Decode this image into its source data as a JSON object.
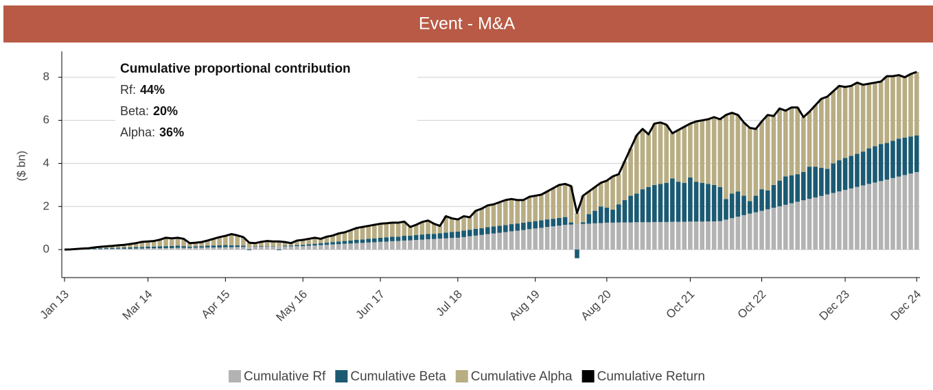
{
  "chart_data": {
    "type": "bar",
    "stacked": true,
    "title": "Event - M&A",
    "y_label": "($ bn)",
    "annotation": {
      "title": "Cumulative proportional contribution",
      "items": [
        {
          "label": "Rf:",
          "value": "44%"
        },
        {
          "label": "Beta:",
          "value": "20%"
        },
        {
          "label": "Alpha:",
          "value": "36%"
        }
      ]
    },
    "categories": [
      "Jan 13",
      null,
      null,
      null,
      null,
      null,
      null,
      null,
      null,
      null,
      null,
      null,
      null,
      null,
      "Mar 14",
      null,
      null,
      null,
      null,
      null,
      null,
      null,
      null,
      null,
      null,
      null,
      null,
      "Apr 15",
      null,
      null,
      null,
      null,
      null,
      null,
      null,
      null,
      null,
      null,
      null,
      null,
      "May 16",
      null,
      null,
      null,
      null,
      null,
      null,
      null,
      null,
      null,
      null,
      null,
      null,
      "Jun 17",
      null,
      null,
      null,
      null,
      null,
      null,
      null,
      null,
      null,
      null,
      null,
      null,
      "Jul 18",
      null,
      null,
      null,
      null,
      null,
      null,
      null,
      null,
      null,
      null,
      null,
      null,
      "Aug 19",
      null,
      null,
      null,
      null,
      null,
      null,
      null,
      null,
      null,
      null,
      null,
      "Aug 20",
      null,
      null,
      null,
      null,
      null,
      null,
      null,
      null,
      null,
      null,
      null,
      null,
      null,
      "Oct 21",
      null,
      null,
      null,
      null,
      null,
      null,
      null,
      null,
      null,
      null,
      null,
      "Oct 22",
      null,
      null,
      null,
      null,
      null,
      null,
      null,
      null,
      null,
      null,
      null,
      null,
      null,
      "Dec 23",
      null,
      null,
      null,
      null,
      null,
      null,
      null,
      null,
      null,
      null,
      null,
      "Dec 24"
    ],
    "series": [
      {
        "name": "Cumulative Rf",
        "color": "#b3b3b3",
        "values": [
          0,
          0,
          0.01,
          0.01,
          0.02,
          0.02,
          0.02,
          0.03,
          0.03,
          0.04,
          0.04,
          0.04,
          0.05,
          0.05,
          0.06,
          0.06,
          0.06,
          0.07,
          0.07,
          0.08,
          0.08,
          0.08,
          0.09,
          0.09,
          0.1,
          0.1,
          0.1,
          0.11,
          0.11,
          0.12,
          0.12,
          0.12,
          0.13,
          0.13,
          0.14,
          0.14,
          0.14,
          0.15,
          0.15,
          0.16,
          0.16,
          0.18,
          0.19,
          0.21,
          0.22,
          0.24,
          0.25,
          0.27,
          0.28,
          0.3,
          0.31,
          0.33,
          0.34,
          0.36,
          0.37,
          0.39,
          0.4,
          0.42,
          0.43,
          0.45,
          0.46,
          0.48,
          0.49,
          0.51,
          0.52,
          0.54,
          0.55,
          0.58,
          0.62,
          0.65,
          0.68,
          0.72,
          0.75,
          0.78,
          0.81,
          0.85,
          0.88,
          0.91,
          0.95,
          0.98,
          1.01,
          1.05,
          1.08,
          1.11,
          1.15,
          1.16,
          1.17,
          1.19,
          1.2,
          1.22,
          1.23,
          1.25,
          1.25,
          1.26,
          1.26,
          1.26,
          1.27,
          1.27,
          1.27,
          1.28,
          1.28,
          1.28,
          1.29,
          1.29,
          1.29,
          1.3,
          1.3,
          1.3,
          1.31,
          1.31,
          1.32,
          1.39,
          1.46,
          1.53,
          1.6,
          1.67,
          1.73,
          1.8,
          1.87,
          1.94,
          2.01,
          2.08,
          2.15,
          2.22,
          2.29,
          2.36,
          2.42,
          2.49,
          2.56,
          2.63,
          2.7,
          2.77,
          2.84,
          2.91,
          2.98,
          3.05,
          3.11,
          3.18,
          3.25,
          3.32,
          3.39,
          3.46,
          3.53,
          3.6
        ]
      },
      {
        "name": "Cumulative Beta",
        "color": "#1b5a72",
        "values": [
          0,
          0,
          0.01,
          0.01,
          0.02,
          0.03,
          0.04,
          0.04,
          0.05,
          0.05,
          0.06,
          0.06,
          0.07,
          0.07,
          0.08,
          0.08,
          0.09,
          0.09,
          0.1,
          0.1,
          0.08,
          0.06,
          0.06,
          0.07,
          0.08,
          0.09,
          0.1,
          0.1,
          0.09,
          0.08,
          0.06,
          -0.03,
          0.02,
          0.03,
          0.02,
          0.02,
          -0.03,
          0.03,
          0.04,
          0.05,
          0.06,
          0.07,
          0.08,
          0.09,
          0.1,
          0.11,
          0.12,
          0.13,
          0.14,
          0.15,
          0.16,
          0.17,
          0.18,
          0.19,
          0.2,
          0.21,
          0.2,
          0.22,
          0.21,
          0.23,
          0.24,
          0.25,
          0.24,
          0.25,
          0.27,
          0.28,
          0.29,
          0.3,
          0.3,
          0.31,
          0.31,
          0.32,
          0.32,
          0.33,
          0.33,
          0.33,
          0.33,
          0.34,
          0.34,
          0.34,
          0.35,
          0.35,
          0.35,
          0.36,
          0.36,
          0.1,
          -0.4,
          0.08,
          0.45,
          0.58,
          0.77,
          0.7,
          0.6,
          0.84,
          1.04,
          1.24,
          1.33,
          1.53,
          1.63,
          1.72,
          1.77,
          1.82,
          2.01,
          1.86,
          1.81,
          2.05,
          1.85,
          1.8,
          1.74,
          1.69,
          1.58,
          0.96,
          1.14,
          1.17,
          0.9,
          0.58,
          0.77,
          1.0,
          0.88,
          1.06,
          1.19,
          1.32,
          1.3,
          1.28,
          1.31,
          1.49,
          1.43,
          1.31,
          1.19,
          1.37,
          1.45,
          1.48,
          1.51,
          1.54,
          1.57,
          1.65,
          1.69,
          1.72,
          1.7,
          1.73,
          1.76,
          1.74,
          1.72,
          1.7
        ]
      },
      {
        "name": "Cumulative Alpha",
        "color": "#b8ad83",
        "values": [
          0,
          0.01,
          0.01,
          0.03,
          0.02,
          0.05,
          0.07,
          0.08,
          0.09,
          0.11,
          0.12,
          0.16,
          0.18,
          0.24,
          0.24,
          0.26,
          0.31,
          0.39,
          0.35,
          0.37,
          0.34,
          0.16,
          0.17,
          0.19,
          0.24,
          0.31,
          0.38,
          0.43,
          0.52,
          0.46,
          0.4,
          0.2,
          0.15,
          0.2,
          0.24,
          0.22,
          0.24,
          0.17,
          0.11,
          0.21,
          0.23,
          0.25,
          0.28,
          0.2,
          0.28,
          0.3,
          0.38,
          0.4,
          0.48,
          0.55,
          0.58,
          0.6,
          0.63,
          0.65,
          0.65,
          0.65,
          0.65,
          0.66,
          0.41,
          0.47,
          0.58,
          0.62,
          0.47,
          0.34,
          0.76,
          0.63,
          0.56,
          0.67,
          0.58,
          0.84,
          0.91,
          1.01,
          1.03,
          1.09,
          1.16,
          1.17,
          1.09,
          1.05,
          1.16,
          1.18,
          1.19,
          1.3,
          1.42,
          1.53,
          1.54,
          1.69,
          0.53,
          1.23,
          1.05,
          1.1,
          1.1,
          1.25,
          1.55,
          1.4,
          1.8,
          2.2,
          2.7,
          2.8,
          2.45,
          2.85,
          2.85,
          2.7,
          2.1,
          2.4,
          2.6,
          2.5,
          2.8,
          2.9,
          3.0,
          3.15,
          3.15,
          3.9,
          3.75,
          3.55,
          3.4,
          3.4,
          3.1,
          3.15,
          3.5,
          3.2,
          3.35,
          3.05,
          3.15,
          3.1,
          2.55,
          2.55,
          2.85,
          3.2,
          3.35,
          3.35,
          3.45,
          3.3,
          3.25,
          3.3,
          3.1,
          3.0,
          2.95,
          2.9,
          3.1,
          3.0,
          2.95,
          2.8,
          2.9,
          2.95
        ]
      },
      {
        "name": "Cumulative Return",
        "color": "#000000",
        "type": "line",
        "values": [
          0,
          0.01,
          0.03,
          0.05,
          0.06,
          0.1,
          0.13,
          0.15,
          0.17,
          0.2,
          0.22,
          0.26,
          0.3,
          0.36,
          0.38,
          0.4,
          0.46,
          0.55,
          0.52,
          0.55,
          0.5,
          0.3,
          0.32,
          0.35,
          0.42,
          0.5,
          0.58,
          0.64,
          0.72,
          0.66,
          0.58,
          0.32,
          0.3,
          0.36,
          0.4,
          0.38,
          0.38,
          0.35,
          0.3,
          0.42,
          0.45,
          0.5,
          0.55,
          0.5,
          0.6,
          0.65,
          0.75,
          0.8,
          0.9,
          1.0,
          1.05,
          1.1,
          1.15,
          1.2,
          1.22,
          1.25,
          1.25,
          1.3,
          1.05,
          1.15,
          1.28,
          1.35,
          1.2,
          1.1,
          1.55,
          1.45,
          1.4,
          1.55,
          1.5,
          1.8,
          1.9,
          2.05,
          2.1,
          2.2,
          2.3,
          2.35,
          2.3,
          2.3,
          2.45,
          2.5,
          2.55,
          2.7,
          2.85,
          3.0,
          3.05,
          2.95,
          1.7,
          2.5,
          2.7,
          2.9,
          3.1,
          3.2,
          3.4,
          3.5,
          4.1,
          4.7,
          5.3,
          5.6,
          5.35,
          5.85,
          5.9,
          5.8,
          5.4,
          5.55,
          5.7,
          5.85,
          5.95,
          6.0,
          6.05,
          6.15,
          6.05,
          6.25,
          6.35,
          6.25,
          5.9,
          5.65,
          5.6,
          5.95,
          6.25,
          6.2,
          6.55,
          6.45,
          6.6,
          6.6,
          6.15,
          6.4,
          6.7,
          7.0,
          7.1,
          7.35,
          7.6,
          7.55,
          7.6,
          7.75,
          7.65,
          7.7,
          7.75,
          7.8,
          8.05,
          8.05,
          8.1,
          8.0,
          8.15,
          8.25
        ]
      }
    ],
    "ylim": [
      -1.3,
      9.2
    ],
    "yticks": [
      0,
      2,
      4,
      6,
      8
    ],
    "grid": true,
    "title_color": "#b85a45"
  }
}
